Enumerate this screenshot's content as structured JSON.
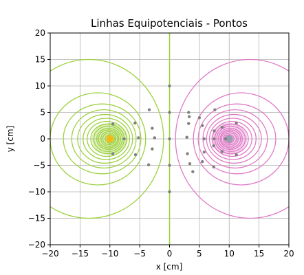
{
  "chart_data": {
    "type": "scatter",
    "title": "Linhas Equipotenciais - Pontos",
    "xlabel": "x [cm]",
    "ylabel": "y [cm]",
    "xlim": [
      -20,
      20
    ],
    "ylim": [
      -20,
      20
    ],
    "xticks": [
      -20,
      -15,
      -10,
      -5,
      0,
      5,
      10,
      15,
      20
    ],
    "yticks": [
      -20,
      -15,
      -10,
      -5,
      0,
      5,
      10,
      15,
      20
    ],
    "grid": true,
    "charges": [
      {
        "x": -10,
        "y": 0,
        "color": "#9dd13f",
        "center_color": "#f4b400"
      },
      {
        "x": 10,
        "y": 0,
        "color": "#e07ac6",
        "center_color": "#8a9aa8"
      }
    ],
    "colors": {
      "left_field": "#9dd13f",
      "right_field": "#e07ac6",
      "center_line": "#9dd13f",
      "points": "#7f7f7f",
      "grid": "#b0b0b0"
    },
    "equipotentials_left": [
      {
        "cx": -13.5,
        "rx": 12.5,
        "ry": 15
      },
      {
        "cx": -12,
        "rx": 8,
        "ry": 8.7
      },
      {
        "cx": -11.3,
        "rx": 6.5,
        "ry": 6.6
      },
      {
        "cx": -11,
        "rx": 5.4,
        "ry": 5.5
      },
      {
        "cx": -10.8,
        "rx": 4.6,
        "ry": 4.6
      },
      {
        "cx": -10.6,
        "rx": 3.9,
        "ry": 3.9
      },
      {
        "cx": -10.5,
        "rx": 3.3,
        "ry": 3.3
      },
      {
        "cx": -10.4,
        "rx": 2.8,
        "ry": 2.8
      },
      {
        "cx": -10.3,
        "rx": 2.4,
        "ry": 2.4
      },
      {
        "cx": -10.2,
        "rx": 2.0,
        "ry": 2.0
      },
      {
        "cx": -10.2,
        "rx": 1.7,
        "ry": 1.7
      },
      {
        "cx": -10.1,
        "rx": 1.4,
        "ry": 1.4
      },
      {
        "cx": -10.1,
        "rx": 1.1,
        "ry": 1.1
      },
      {
        "cx": -10.0,
        "rx": 0.8,
        "ry": 0.8
      }
    ],
    "equipotentials_right": [
      {
        "cx": 13.5,
        "rx": 12.5,
        "ry": 15
      },
      {
        "cx": 12,
        "rx": 8,
        "ry": 8.7
      },
      {
        "cx": 11.3,
        "rx": 6.5,
        "ry": 6.6
      },
      {
        "cx": 11,
        "rx": 5.4,
        "ry": 5.5
      },
      {
        "cx": 10.8,
        "rx": 4.6,
        "ry": 4.6
      },
      {
        "cx": 10.6,
        "rx": 3.9,
        "ry": 3.9
      },
      {
        "cx": 10.5,
        "rx": 3.3,
        "ry": 3.3
      },
      {
        "cx": 10.4,
        "rx": 2.8,
        "ry": 2.8
      },
      {
        "cx": 10.3,
        "rx": 2.4,
        "ry": 2.4
      },
      {
        "cx": 10.2,
        "rx": 2.0,
        "ry": 2.0
      },
      {
        "cx": 10.2,
        "rx": 1.7,
        "ry": 1.7
      },
      {
        "cx": 10.1,
        "rx": 1.4,
        "ry": 1.4
      },
      {
        "cx": 10.1,
        "rx": 1.1,
        "ry": 1.1
      },
      {
        "cx": 10.0,
        "rx": 0.8,
        "ry": 0.8
      }
    ],
    "points": [
      [
        0,
        10
      ],
      [
        0,
        5
      ],
      [
        0,
        0
      ],
      [
        0,
        -5
      ],
      [
        0,
        -10
      ],
      [
        -9.5,
        2.8
      ],
      [
        -9.5,
        -2.8
      ],
      [
        -7.6,
        0
      ],
      [
        -5.8,
        3
      ],
      [
        -5.7,
        -3
      ],
      [
        -5.2,
        0.2
      ],
      [
        -3.4,
        5.5
      ],
      [
        -2.9,
        2
      ],
      [
        -2.5,
        0.2
      ],
      [
        -2.9,
        -1.9
      ],
      [
        -3.5,
        -4.9
      ],
      [
        3.2,
        5
      ],
      [
        3.3,
        4.2
      ],
      [
        3.2,
        2.9
      ],
      [
        2.9,
        0.3
      ],
      [
        3,
        -2.8
      ],
      [
        3.4,
        -4.7
      ],
      [
        3.9,
        -6.2
      ],
      [
        5,
        4
      ],
      [
        5.5,
        2.5
      ],
      [
        5.8,
        0
      ],
      [
        5.8,
        -2.5
      ],
      [
        5.5,
        -4.3
      ],
      [
        7.5,
        1.5
      ],
      [
        7.5,
        0
      ],
      [
        7.4,
        -1.3
      ],
      [
        7.6,
        5.5
      ],
      [
        7.4,
        -5.3
      ],
      [
        8.8,
        2.2
      ],
      [
        9.4,
        0
      ],
      [
        8.8,
        -2.4
      ],
      [
        11.2,
        3
      ],
      [
        11.2,
        -3
      ]
    ]
  }
}
